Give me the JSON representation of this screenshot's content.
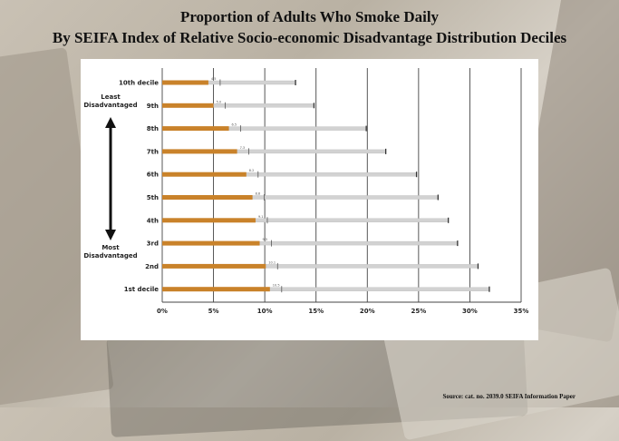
{
  "title_line1": "Proportion of Adults Who Smoke Daily",
  "title_line2": "By SEIFA Index of Relative Socio-economic Disadvantage Distribution Deciles",
  "source": "Source: cat. no. 2039.0 SEIFA Information Paper",
  "colors": {
    "bar": "#c9822a",
    "tail": "#d2d2d2",
    "grid": "#444444"
  },
  "chart_data": {
    "type": "bar",
    "orientation": "horizontal",
    "categories": [
      "10th decile",
      "9th",
      "8th",
      "7th",
      "6th",
      "5th",
      "4th",
      "3rd",
      "2nd",
      "1st decile"
    ],
    "values": [
      4.5,
      5.0,
      6.5,
      7.3,
      8.2,
      8.8,
      9.1,
      9.5,
      10.1,
      10.5
    ],
    "tail_ends": [
      13.0,
      14.8,
      19.9,
      21.8,
      24.8,
      26.9,
      27.9,
      28.8,
      30.8,
      31.9
    ],
    "xlim": [
      0,
      35
    ],
    "xticks": [
      "0%",
      "5%",
      "10%",
      "15%",
      "20%",
      "25%",
      "30%",
      "35%"
    ],
    "annotation_top": "Least Disadvantaged",
    "annotation_bottom": "Most Disadvantaged"
  }
}
